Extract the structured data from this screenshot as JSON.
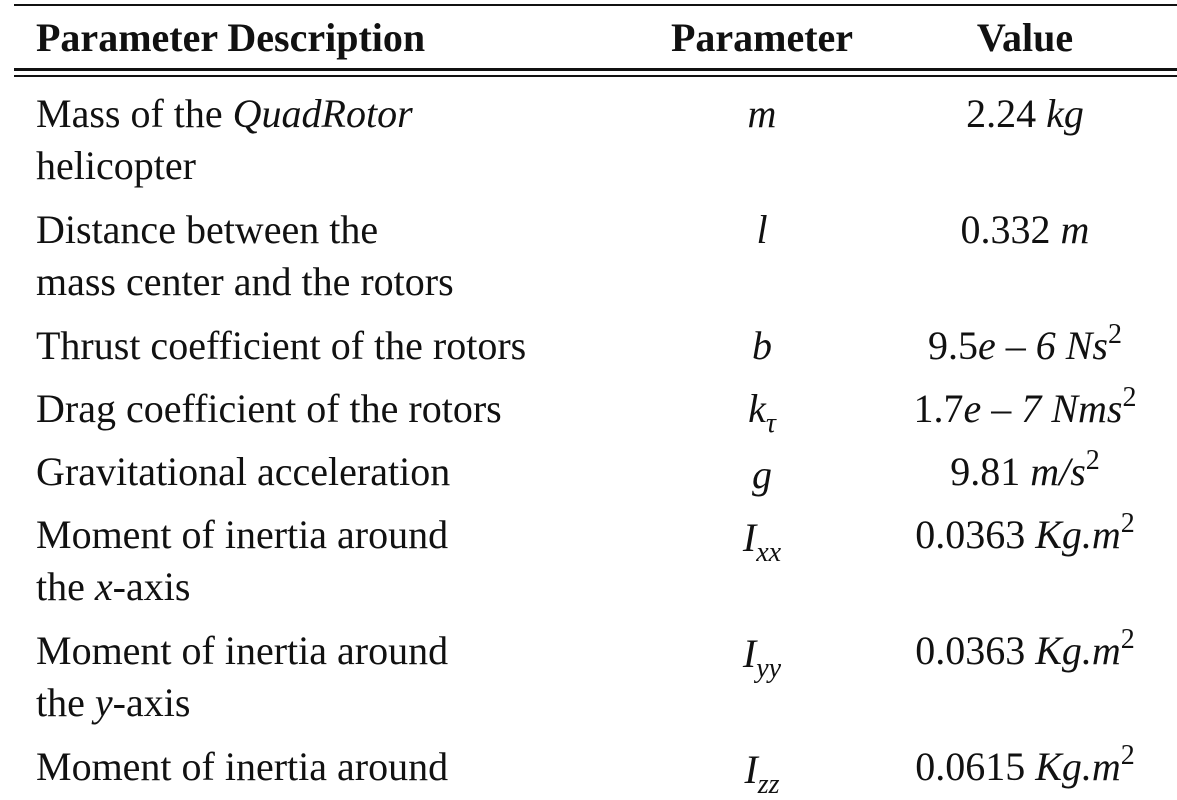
{
  "header": {
    "description": "Parameter Description",
    "parameter": "Parameter",
    "value": "Value"
  },
  "rows": [
    {
      "desc_pre": "Mass of the ",
      "desc_italic": "QuadRotor",
      "desc_line2": "helicopter",
      "symbol": "m",
      "value_num": "2.24 ",
      "value_unit": "kg"
    },
    {
      "desc_line1": "Distance between the",
      "desc_line2": "mass center and the rotors",
      "symbol": "l",
      "value_num": "0.332 ",
      "value_unit": "m"
    },
    {
      "desc_line1": "Thrust coefficient of the rotors",
      "symbol": "b",
      "value_num": "9.5",
      "value_exp": "e – 6 ",
      "value_unit": "Ns",
      "value_sup": "2"
    },
    {
      "desc_line1": "Drag coefficient of the rotors",
      "symbol": "k",
      "symbol_sub": "τ",
      "value_num": "1.7",
      "value_exp": "e – 7 ",
      "value_unit": "Nms",
      "value_sup": "2"
    },
    {
      "desc_line1": "Gravitational acceleration",
      "symbol": "g",
      "value_num": "9.81 ",
      "value_unit": "m/s",
      "value_sup": "2"
    },
    {
      "desc_line1": "Moment of inertia around",
      "desc_line2_pre": "the ",
      "desc_line2_italic": "x",
      "desc_line2_post": "-axis",
      "symbol": "I",
      "symbol_sub": "xx",
      "value_num": "0.0363 ",
      "value_unit": "Kg.m",
      "value_sup": "2"
    },
    {
      "desc_line1": "Moment of inertia around",
      "desc_line2_pre": "the ",
      "desc_line2_italic": "y",
      "desc_line2_post": "-axis",
      "symbol": "I",
      "symbol_sub": "yy",
      "value_num": "0.0363 ",
      "value_unit": "Kg.m",
      "value_sup": "2"
    },
    {
      "desc_line1": "Moment of inertia around",
      "symbol": "I",
      "symbol_sub": "zz",
      "value_num": "0.0615 ",
      "value_unit": "Kg.m",
      "value_sup": "2"
    }
  ]
}
